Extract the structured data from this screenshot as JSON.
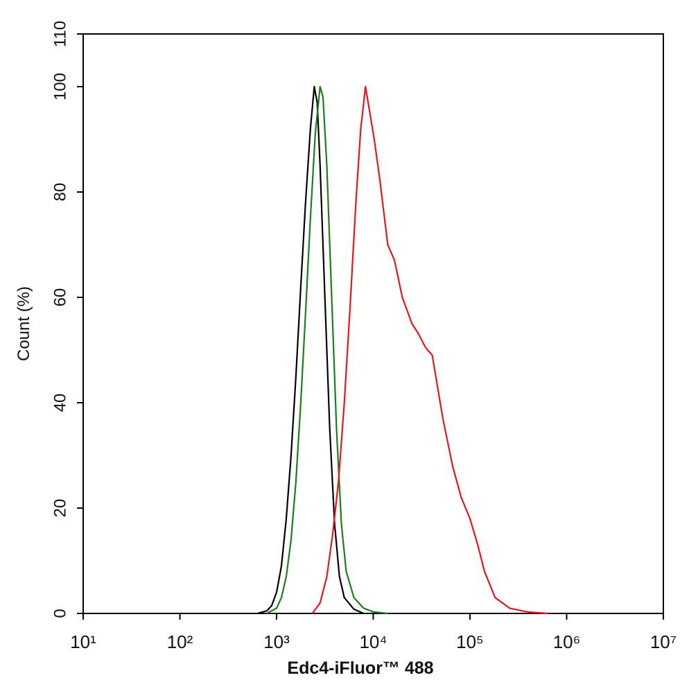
{
  "chart_data": {
    "type": "line",
    "xlabel": "Edc4-iFluor™ 488",
    "ylabel": "Count  (%)",
    "xscale": "log",
    "xlim": [
      10,
      10000000
    ],
    "xticks": [
      {
        "value": 10,
        "label": "10¹"
      },
      {
        "value": 100,
        "label": "10²"
      },
      {
        "value": 1000,
        "label": "10³"
      },
      {
        "value": 10000,
        "label": "10⁴"
      },
      {
        "value": 100000,
        "label": "10⁵"
      },
      {
        "value": 1000000,
        "label": "10⁶"
      },
      {
        "value": 10000000,
        "label": "10⁷"
      }
    ],
    "ylim": [
      0,
      110
    ],
    "yticks": [
      0,
      20,
      40,
      60,
      80,
      100,
      110
    ],
    "series": [
      {
        "color": "#000000",
        "x": [
          631,
          794,
          891,
          1000,
          1122,
          1259,
          1413,
          1585,
          1778,
          1995,
          2239,
          2455,
          2630,
          2818,
          3162,
          3548,
          3981,
          4467,
          5012,
          6310,
          7943
        ],
        "values": [
          0,
          0.5,
          1.5,
          4,
          9,
          18,
          30,
          45,
          62,
          78,
          92,
          100,
          97,
          85,
          60,
          35,
          17,
          7,
          3,
          0.8,
          0
        ]
      },
      {
        "color": "#1a7f1a",
        "x": [
          794,
          1000,
          1122,
          1259,
          1413,
          1585,
          1778,
          1995,
          2239,
          2512,
          2818,
          3020,
          3311,
          3715,
          4169,
          4677,
          5248,
          6310,
          7943,
          10000,
          14125
        ],
        "values": [
          0,
          1,
          3,
          7,
          14,
          25,
          40,
          57,
          75,
          91,
          100,
          98,
          85,
          60,
          35,
          17,
          8,
          3,
          1,
          0.3,
          0
        ]
      },
      {
        "color": "#e8141c",
        "x": [
          2344,
          2818,
          3311,
          3802,
          4365,
          5012,
          5754,
          6607,
          7413,
          8318,
          10233,
          11749,
          14125,
          16596,
          19953,
          25119,
          29512,
          34674,
          40738,
          52481,
          66069,
          81283,
          100000,
          120226,
          141254,
          181970,
          257040,
          389045,
          630957
        ],
        "values": [
          0,
          2,
          7,
          15,
          25,
          40,
          58,
          78,
          92,
          100,
          90,
          82,
          70,
          67,
          60,
          55,
          53,
          50.5,
          49,
          37,
          28,
          22,
          18,
          13,
          8,
          3,
          1,
          0.3,
          0
        ]
      }
    ]
  }
}
